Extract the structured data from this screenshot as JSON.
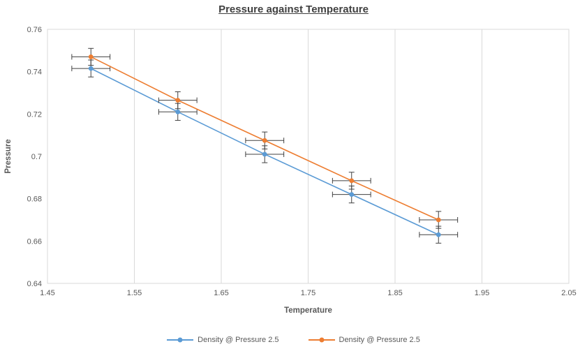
{
  "chart_data": {
    "type": "line",
    "title": "Pressure against Temperature",
    "xlabel": "Temperature",
    "ylabel": "Pressure",
    "xlim": [
      1.45,
      2.05
    ],
    "ylim": [
      0.64,
      0.76
    ],
    "xticks": [
      1.45,
      1.55,
      1.65,
      1.75,
      1.85,
      1.95,
      2.05
    ],
    "xtick_labels": [
      "1.45",
      "1.55",
      "1.65",
      "1.75",
      "1.85",
      "1.95",
      "2.05"
    ],
    "yticks": [
      0.64,
      0.66,
      0.68,
      0.7,
      0.72,
      0.74,
      0.76
    ],
    "ytick_labels": [
      "0.64",
      "0.66",
      "0.68",
      "0.7",
      "0.72",
      "0.74",
      "0.76"
    ],
    "grid": "vertical",
    "legend_position": "bottom",
    "x": [
      1.5,
      1.6,
      1.7,
      1.8,
      1.9
    ],
    "series": [
      {
        "name": "Density @ Pressure 2.5",
        "color": "#5b9bd5",
        "values": [
          0.7415,
          0.721,
          0.701,
          0.682,
          0.663
        ],
        "x_error": 0.022,
        "y_error": 0.004
      },
      {
        "name": "Density @ Pressure 2.5",
        "color": "#ed7d31",
        "values": [
          0.747,
          0.7265,
          0.7075,
          0.6885,
          0.67
        ],
        "x_error": 0.022,
        "y_error": 0.004
      }
    ],
    "colors": {
      "grid": "#d9d9d9",
      "axis_text": "#595959",
      "title": "#404040",
      "error_bar": "#404040"
    }
  }
}
